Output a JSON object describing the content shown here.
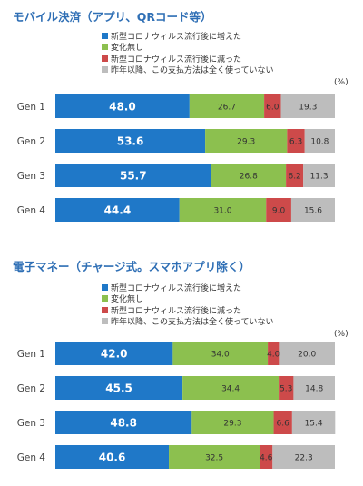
{
  "colors": {
    "series": [
      "#1f78c8",
      "#8cc04f",
      "#cd4a4a",
      "#bdbdbd"
    ],
    "title": "#2f6fb5"
  },
  "legend_items": [
    "新型コロナウィルス流行後に増えた",
    "変化無し",
    "新型コロナウィルス流行後に減った",
    "昨年以降、この支払方法は全く使っていない"
  ],
  "chart_data": [
    {
      "type": "bar",
      "orientation": "horizontal",
      "stacked": true,
      "title": "モバイル決済（アプリ、QRコード等）",
      "unit_label": "(%)",
      "categories": [
        "Gen 1",
        "Gen 2",
        "Gen 3",
        "Gen 4"
      ],
      "series": [
        {
          "name": "新型コロナウィルス流行後に増えた",
          "values": [
            48.0,
            53.6,
            55.7,
            44.4
          ]
        },
        {
          "name": "変化無し",
          "values": [
            26.7,
            29.3,
            26.8,
            31.0
          ]
        },
        {
          "name": "新型コロナウィルス流行後に減った",
          "values": [
            6.0,
            6.3,
            6.2,
            9.0
          ]
        },
        {
          "name": "昨年以降、この支払方法は全く使っていない",
          "values": [
            19.3,
            10.8,
            11.3,
            15.6
          ]
        }
      ],
      "xlim": [
        0,
        100
      ],
      "legend_position": "top"
    },
    {
      "type": "bar",
      "orientation": "horizontal",
      "stacked": true,
      "title": "電子マネー（チャージ式。スマホアプリ除く）",
      "unit_label": "(%)",
      "categories": [
        "Gen 1",
        "Gen 2",
        "Gen 3",
        "Gen 4"
      ],
      "series": [
        {
          "name": "新型コロナウィルス流行後に増えた",
          "values": [
            42.0,
            45.5,
            48.8,
            40.6
          ]
        },
        {
          "name": "変化無し",
          "values": [
            34.0,
            34.4,
            29.3,
            32.5
          ]
        },
        {
          "name": "新型コロナウィルス流行後に減った",
          "values": [
            4.0,
            5.3,
            6.6,
            4.6
          ]
        },
        {
          "name": "昨年以降、この支払方法は全く使っていない",
          "values": [
            20.0,
            14.8,
            15.4,
            22.3
          ]
        }
      ],
      "xlim": [
        0,
        100
      ],
      "legend_position": "top"
    }
  ]
}
